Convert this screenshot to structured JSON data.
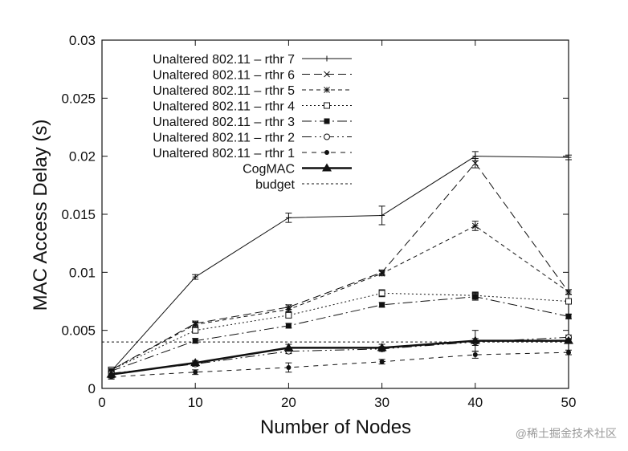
{
  "chart_data": {
    "type": "line",
    "xlabel": "Number of Nodes",
    "ylabel": "MAC Access Delay (s)",
    "xlim": [
      0,
      50
    ],
    "ylim": [
      0,
      0.03
    ],
    "xticks": [
      "0",
      "10",
      "20",
      "30",
      "40",
      "50"
    ],
    "yticks": [
      "0",
      "0.005",
      "0.01",
      "0.015",
      "0.02",
      "0.025",
      "0.03"
    ],
    "grid": false,
    "legend_position": "top-left",
    "x": [
      1,
      10,
      20,
      30,
      40,
      50
    ],
    "series": [
      {
        "name": "Unaltered 802.11 – rthr 7",
        "marker": "plus",
        "dash": "",
        "width": 1,
        "values": [
          0.0015,
          0.0096,
          0.0147,
          0.0149,
          0.02,
          0.0199
        ],
        "errors": [
          0.0002,
          0.0002,
          0.0004,
          0.0008,
          0.0004,
          0.0002
        ]
      },
      {
        "name": "Unaltered 802.11 – rthr 6",
        "marker": "x",
        "dash": "10,5",
        "width": 1,
        "values": [
          0.0016,
          0.0056,
          0.007,
          0.01,
          0.0194,
          0.0083
        ],
        "errors": [
          0.0002,
          0.0002,
          0.0002,
          0.0002,
          0.0004,
          0.0002
        ]
      },
      {
        "name": "Unaltered 802.11 – rthr 5",
        "marker": "star",
        "dash": "5,4",
        "width": 1,
        "values": [
          0.0016,
          0.0055,
          0.0068,
          0.0099,
          0.014,
          0.0083
        ],
        "errors": [
          0.0002,
          0.0002,
          0.0002,
          0.0002,
          0.0004,
          0.0002
        ]
      },
      {
        "name": "Unaltered 802.11 – rthr 4",
        "marker": "open-square",
        "dash": "2,3",
        "width": 1,
        "values": [
          0.0016,
          0.005,
          0.0063,
          0.0082,
          0.008,
          0.0075
        ],
        "errors": [
          0.0002,
          0.0002,
          0.0002,
          0.0003,
          0.0003,
          0.0002
        ]
      },
      {
        "name": "Unaltered 802.11 – rthr 3",
        "marker": "filled-square",
        "dash": "12,4,2,4",
        "width": 1,
        "values": [
          0.0015,
          0.0041,
          0.0054,
          0.0072,
          0.0079,
          0.0062
        ],
        "errors": [
          0.0002,
          0.0002,
          0.0002,
          0.0002,
          0.0003,
          0.0002
        ]
      },
      {
        "name": "Unaltered 802.11 – rthr 2",
        "marker": "open-circle",
        "dash": "12,4,2,4,2,4",
        "width": 1,
        "values": [
          0.0013,
          0.0021,
          0.0032,
          0.0034,
          0.004,
          0.0044
        ],
        "errors": [
          0.0002,
          0.0002,
          0.0002,
          0.0002,
          0.0003,
          0.0002
        ]
      },
      {
        "name": "Unaltered 802.11 – rthr 1",
        "marker": "filled-circle",
        "dash": "6,6",
        "width": 1,
        "values": [
          0.001,
          0.0014,
          0.0018,
          0.0023,
          0.0029,
          0.0031
        ],
        "errors": [
          0.0002,
          0.0002,
          0.0004,
          0.0002,
          0.0003,
          0.0002
        ]
      },
      {
        "name": "CogMAC",
        "marker": "triangle",
        "dash": "",
        "width": 2.5,
        "values": [
          0.0012,
          0.0022,
          0.0035,
          0.0035,
          0.0041,
          0.0041
        ],
        "errors": [
          0.0003,
          0.0002,
          0.0003,
          0.0003,
          0.0009,
          0.0002
        ]
      },
      {
        "name": "budget",
        "marker": "none",
        "dash": "3,3",
        "width": 1,
        "reference_value": 0.004
      }
    ]
  },
  "watermark": "@稀土掘金技术社区",
  "colors": {
    "line": "#111111",
    "background": "#ffffff"
  }
}
